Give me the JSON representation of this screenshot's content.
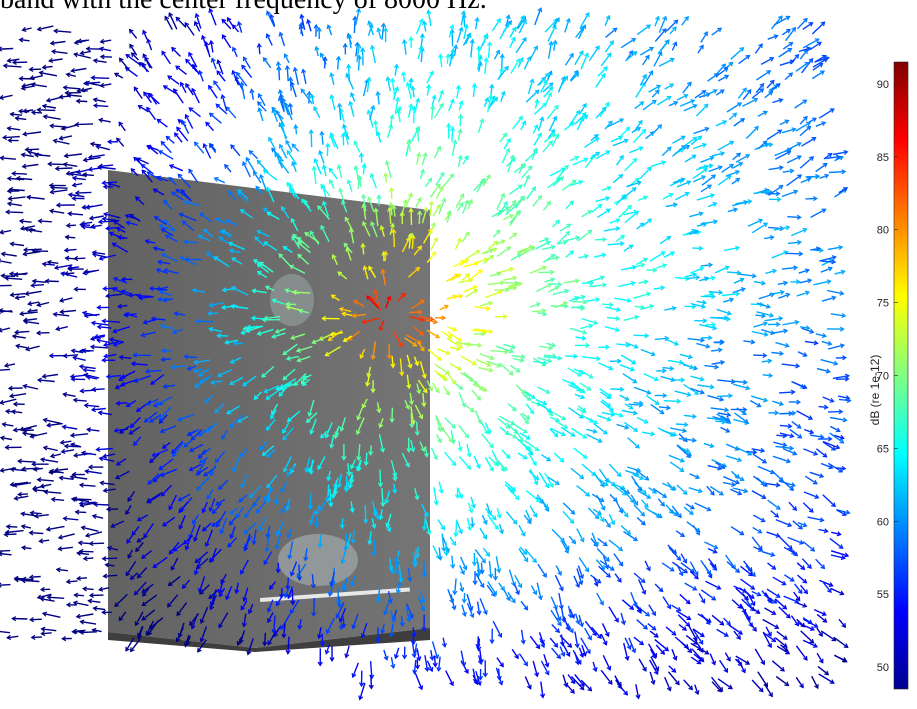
{
  "caption": "band with the center frequency of 8000 Hz.",
  "chart_data": {
    "type": "vector-field",
    "colorbar": {
      "label": "dB (re 1e-12)",
      "range": [
        48.5,
        91.5
      ],
      "ticks": [
        50,
        55,
        60,
        65,
        70,
        75,
        80,
        85,
        90
      ],
      "colormap": "jet"
    },
    "source_region_level_db": [
      85,
      91
    ],
    "far_field_level_db": [
      55,
      70
    ]
  }
}
